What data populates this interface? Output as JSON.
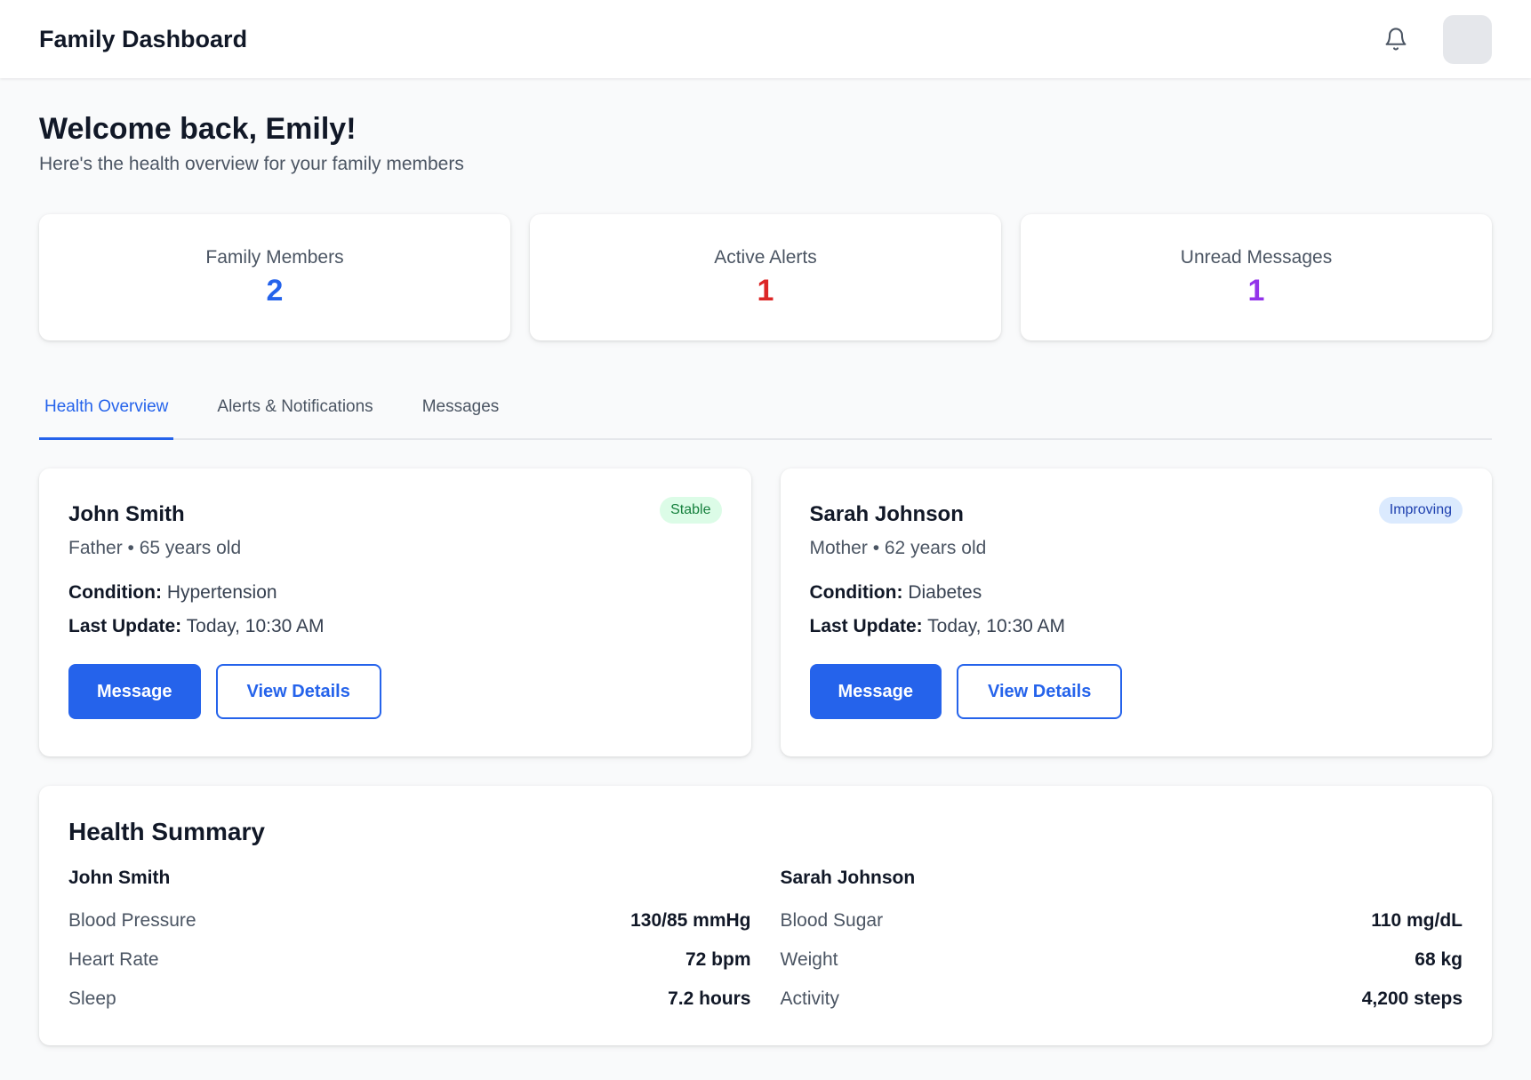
{
  "header": {
    "title": "Family Dashboard"
  },
  "welcome": {
    "title": "Welcome back, Emily!",
    "subtitle": "Here's the health overview for your family members"
  },
  "stats": [
    {
      "label": "Family Members",
      "value": "2",
      "color": "#2563eb"
    },
    {
      "label": "Active Alerts",
      "value": "1",
      "color": "#dc2626"
    },
    {
      "label": "Unread Messages",
      "value": "1",
      "color": "#9333ea"
    }
  ],
  "tabs": [
    {
      "label": "Health Overview",
      "active": true
    },
    {
      "label": "Alerts & Notifications",
      "active": false
    },
    {
      "label": "Messages",
      "active": false
    }
  ],
  "members": [
    {
      "name": "John Smith",
      "meta": "Father • 65 years old",
      "status": "Stable",
      "status_bg": "#dcfce7",
      "status_color": "#15803d",
      "condition_label": "Condition:",
      "condition": "Hypertension",
      "update_label": "Last Update:",
      "last_update": "Today, 10:30 AM",
      "message_label": "Message",
      "details_label": "View Details"
    },
    {
      "name": "Sarah Johnson",
      "meta": "Mother • 62 years old",
      "status": "Improving",
      "status_bg": "#dbeafe",
      "status_color": "#1e40af",
      "condition_label": "Condition:",
      "condition": "Diabetes",
      "update_label": "Last Update:",
      "last_update": "Today, 10:30 AM",
      "message_label": "Message",
      "details_label": "View Details"
    }
  ],
  "summary": {
    "title": "Health Summary",
    "people": [
      {
        "name": "John Smith",
        "metrics": [
          {
            "label": "Blood Pressure",
            "value": "130/85 mmHg"
          },
          {
            "label": "Heart Rate",
            "value": "72 bpm"
          },
          {
            "label": "Sleep",
            "value": "7.2 hours"
          }
        ]
      },
      {
        "name": "Sarah Johnson",
        "metrics": [
          {
            "label": "Blood Sugar",
            "value": "110 mg/dL"
          },
          {
            "label": "Weight",
            "value": "68 kg"
          },
          {
            "label": "Activity",
            "value": "4,200 steps"
          }
        ]
      }
    ]
  }
}
